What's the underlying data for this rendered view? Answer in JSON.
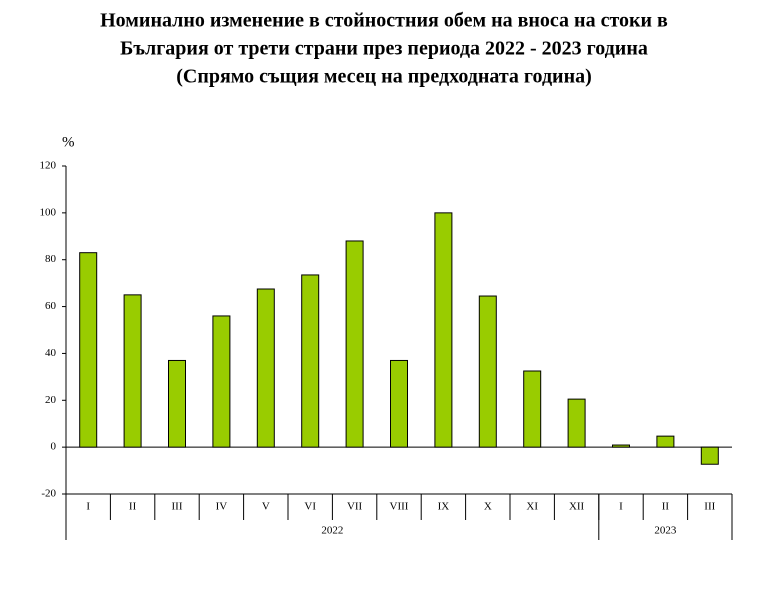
{
  "chart_data": {
    "type": "bar",
    "title": [
      "Номинално изменение в стойностния обем на вноса на стоки в",
      "България от трети страни през периода 2022 - 2023 година",
      "(Спрямо същия месец на предходната година)"
    ],
    "y_label": "%",
    "categories": [
      "I",
      "II",
      "III",
      "IV",
      "V",
      "VI",
      "VII",
      "VIII",
      "IX",
      "X",
      "XI",
      "XII",
      "I",
      "II",
      "III"
    ],
    "groups": [
      {
        "name": "2022",
        "span": 12
      },
      {
        "name": "2023",
        "span": 3
      }
    ],
    "values": [
      83,
      65,
      37,
      56,
      67.5,
      73.5,
      88,
      37,
      100,
      64.5,
      32.5,
      20.5,
      0.9,
      4.7,
      -7.3
    ],
    "color": "#99cc00",
    "ylim": [
      -20,
      120
    ],
    "yticks": [
      -20,
      0,
      20,
      40,
      60,
      80,
      100,
      120
    ],
    "grid": false
  }
}
